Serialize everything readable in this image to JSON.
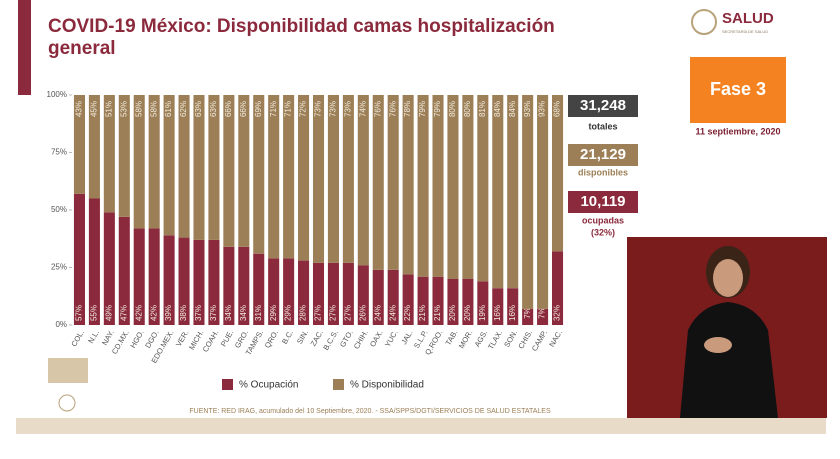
{
  "chart_data": {
    "type": "bar",
    "stacked": true,
    "title": "COVID-19 México: Disponibilidad camas hospitalización general",
    "categories": [
      "COL.",
      "N.L.",
      "NAY.",
      "CD.MX.",
      "HGO.",
      "DGO.",
      "EDO.MEX.",
      "VER.",
      "MICH.",
      "COAH.",
      "PUE.",
      "GRO.",
      "TAMPS.",
      "QRO.",
      "B.C.",
      "SIN.",
      "ZAC.",
      "B.C.S.",
      "GTO.",
      "CHIH.",
      "OAX.",
      "YUC.",
      "JAL.",
      "S.L.P.",
      "Q.ROO.",
      "TAB.",
      "MOR.",
      "AGS.",
      "TLAX.",
      "SON.",
      "CHIS.",
      "CAMP.",
      "NAC."
    ],
    "series": [
      {
        "name": "% Ocupación",
        "color": "#8b2a3c",
        "values": [
          57,
          55,
          49,
          47,
          42,
          42,
          39,
          38,
          37,
          37,
          34,
          34,
          31,
          29,
          29,
          28,
          27,
          27,
          27,
          26,
          24,
          24,
          22,
          21,
          21,
          20,
          20,
          19,
          16,
          16,
          7,
          7,
          32
        ],
        "value_labels": [
          "57%",
          "55%",
          "49%",
          "47%",
          "42%",
          "42%",
          "39%",
          "38%",
          "37%",
          "37%",
          "34%",
          "34%",
          "31%",
          "29%",
          "29%",
          "28%",
          "27%",
          "27%",
          "27%",
          "26%",
          "24%",
          "24%",
          "22%",
          "21%",
          "21%",
          "20%",
          "20%",
          "19%",
          "16%",
          "16%",
          "7%",
          "7%",
          "32%"
        ]
      },
      {
        "name": "% Disponibilidad",
        "color": "#9c7f56",
        "values": [
          43,
          45,
          51,
          53,
          58,
          58,
          61,
          62,
          63,
          63,
          66,
          66,
          69,
          71,
          71,
          72,
          73,
          73,
          73,
          74,
          76,
          76,
          78,
          79,
          79,
          80,
          80,
          81,
          84,
          84,
          93,
          93,
          68
        ],
        "value_labels": [
          "43%",
          "45%",
          "51%",
          "53%",
          "58%",
          "58%",
          "61%",
          "62%",
          "63%",
          "63%",
          "66%",
          "66%",
          "69%",
          "71%",
          "71%",
          "72%",
          "73%",
          "73%",
          "73%",
          "74%",
          "76%",
          "76%",
          "78%",
          "79%",
          "79%",
          "80%",
          "80%",
          "81%",
          "84%",
          "84%",
          "93%",
          "93%",
          "68%"
        ]
      }
    ],
    "ylim": [
      0,
      100
    ],
    "yticks": [
      {
        "value": 0,
        "label": "0%"
      },
      {
        "value": 25,
        "label": "25%"
      },
      {
        "value": 50,
        "label": "50%"
      },
      {
        "value": 75,
        "label": "75%"
      },
      {
        "value": 100,
        "label": "100%"
      }
    ],
    "grid": false,
    "legend": "bottom",
    "source": "FUENTE: RED IRAG, acumulado del 10 Septiembre, 2020. - SSA/SPPS/DGTI/SERVICIOS DE SALUD ESTATALES"
  },
  "header": {
    "logo": "SALUD",
    "logo_sub": "SECRETARÍA DE SALUD",
    "phase": "Fase 3",
    "date": "11 septiembre, 2020"
  },
  "summary": {
    "total": "31,248",
    "total_label": "totales",
    "available": "21,129",
    "available_label": "disponibles",
    "occupied": "10,119",
    "occupied_label": "ocupadas",
    "occupied_pct": "(32%)"
  }
}
